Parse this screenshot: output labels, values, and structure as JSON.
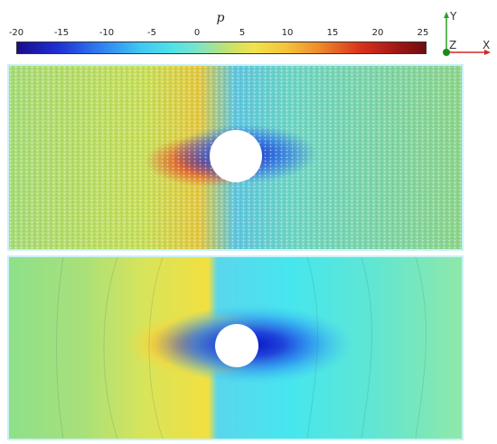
{
  "colorbar": {
    "title": "p",
    "ticks": [
      "-20",
      "-15",
      "-10",
      "-5",
      "0",
      "5",
      "10",
      "15",
      "20",
      "25"
    ],
    "range": [
      -20,
      25
    ],
    "colormap": "jet-like"
  },
  "axes_triad": {
    "y": "Y",
    "z": "Z",
    "x": "X"
  },
  "colors": {
    "high": "#c81e1e",
    "low": "#1020c8",
    "mid": "#46d6e6",
    "panel_border": "#c9f1f6"
  }
}
